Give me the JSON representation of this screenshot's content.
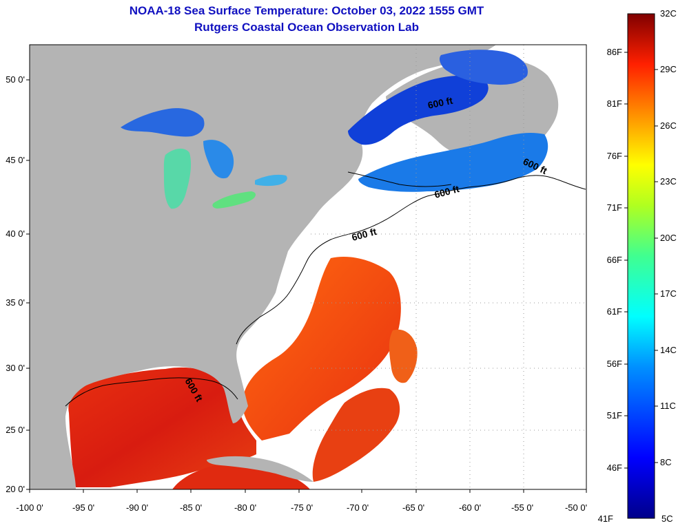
{
  "header": {
    "title": "NOAA-18 Sea Surface Temperature:  October 03, 2022 1555 GMT",
    "subtitle": "Rutgers Coastal Ocean Observation Lab"
  },
  "map": {
    "lat_labels": [
      "50 0'",
      "45 0'",
      "40 0'",
      "35 0'",
      "30 0'",
      "25 0'",
      "20 0'"
    ],
    "lon_labels": [
      "-100 0'",
      "-95 0'",
      "-90 0'",
      "-85 0'",
      "-80 0'",
      "-75 0'",
      "-70 0'",
      "-65 0'",
      "-60 0'",
      "-55 0'",
      "-50 0'"
    ],
    "contour_label": "600 ft",
    "colors": {
      "land": "#b4b4b4",
      "cloud": "#ffffff",
      "warm_sst": "#e02a10",
      "cool_sst": "#1850e0"
    }
  },
  "colorbar": {
    "celsius_labels": [
      "32C",
      "29C",
      "26C",
      "23C",
      "20C",
      "17C",
      "14C",
      "11C",
      "8C",
      "5C"
    ],
    "fahrenheit_labels": [
      "86F",
      "81F",
      "76F",
      "71F",
      "66F",
      "61F",
      "56F",
      "51F",
      "46F",
      "41F"
    ],
    "min_c": 5,
    "max_c": 32
  }
}
